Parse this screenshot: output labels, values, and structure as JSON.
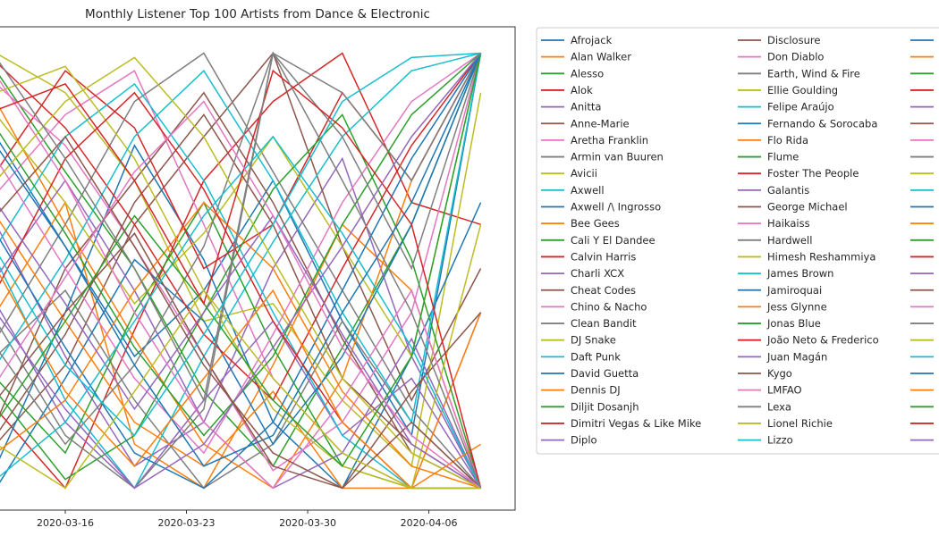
{
  "chart_data": {
    "type": "line",
    "title": "Monthly Listener Top 100 Artists from Dance & Electronic",
    "xlabel": "",
    "ylabel": "",
    "x": [
      "2020-03-12",
      "2020-03-16",
      "2020-03-20",
      "2020-03-24",
      "2020-03-28",
      "2020-04-01",
      "2020-04-05",
      "2020-04-09"
    ],
    "xticks": [
      "2020-03-16",
      "2020-03-23",
      "2020-03-30",
      "2020-04-06"
    ],
    "xlim": [
      "2020-03-12",
      "2020-04-12"
    ],
    "ylim": [
      105,
      -5
    ],
    "grid": false,
    "legend_placement": "outside-right",
    "palette": [
      "#1f77b4",
      "#ff7f0e",
      "#2ca02c",
      "#d62728",
      "#9467bd",
      "#8c564b",
      "#e377c2",
      "#7f7f7f",
      "#bcbd22",
      "#17becf"
    ],
    "series": [
      {
        "name": "Afrojack",
        "values": [
          20,
          45,
          70,
          55,
          30,
          62,
          88,
          1
        ]
      },
      {
        "name": "Alan Walker",
        "values": [
          60,
          35,
          90,
          100,
          72,
          40,
          55,
          100
        ]
      },
      {
        "name": "Alesso",
        "values": [
          5,
          28,
          50,
          78,
          95,
          68,
          40,
          1
        ]
      },
      {
        "name": "Alok",
        "values": [
          82,
          100,
          64,
          30,
          12,
          1,
          35,
          40
        ]
      },
      {
        "name": "Anitta",
        "values": [
          40,
          70,
          95,
          85,
          50,
          25,
          70,
          100
        ]
      },
      {
        "name": "Anne-Marie",
        "values": [
          90,
          72,
          40,
          20,
          1,
          45,
          80,
          50
        ]
      },
      {
        "name": "Aretha Franklin",
        "values": [
          33,
          15,
          5,
          40,
          75,
          92,
          100,
          60
        ]
      },
      {
        "name": "Armin van Buuren",
        "values": [
          70,
          55,
          80,
          100,
          90,
          62,
          85,
          100
        ]
      },
      {
        "name": "Avicii",
        "values": [
          1,
          10,
          30,
          62,
          58,
          80,
          95,
          10
        ]
      },
      {
        "name": "Axwell",
        "values": [
          48,
          80,
          100,
          70,
          44,
          20,
          5,
          1
        ]
      },
      {
        "name": "Axwell /\\ Ingrosso",
        "values": [
          95,
          60,
          22,
          48,
          85,
          100,
          70,
          35
        ]
      },
      {
        "name": "Bee Gees",
        "values": [
          12,
          40,
          66,
          90,
          100,
          75,
          30,
          1
        ]
      },
      {
        "name": "Cali Y El Dandee",
        "values": [
          75,
          92,
          60,
          35,
          68,
          95,
          100,
          100
        ]
      },
      {
        "name": "Calvin Harris",
        "values": [
          28,
          5,
          18,
          50,
          40,
          10,
          30,
          1
        ]
      },
      {
        "name": "Charli XCX",
        "values": [
          58,
          85,
          100,
          80,
          62,
          88,
          75,
          100
        ]
      },
      {
        "name": "Cheat Codes",
        "values": [
          85,
          50,
          30,
          10,
          35,
          66,
          92,
          100
        ]
      },
      {
        "name": "Chino & Nacho",
        "values": [
          8,
          22,
          45,
          70,
          96,
          85,
          60,
          1
        ]
      },
      {
        "name": "Clean Bandit",
        "values": [
          66,
          40,
          12,
          1,
          28,
          55,
          82,
          100
        ]
      },
      {
        "name": "DJ Snake",
        "values": [
          15,
          35,
          58,
          42,
          20,
          45,
          70,
          1
        ]
      },
      {
        "name": "Daft Punk",
        "values": [
          45,
          20,
          8,
          30,
          60,
          88,
          100,
          100
        ]
      },
      {
        "name": "David Guetta",
        "values": [
          100,
          75,
          48,
          62,
          90,
          70,
          40,
          1
        ]
      },
      {
        "name": "Dennis DJ",
        "values": [
          38,
          62,
          85,
          95,
          78,
          100,
          100,
          60
        ]
      },
      {
        "name": "Diljit Dosanjh",
        "values": [
          78,
          98,
          88,
          60,
          32,
          15,
          48,
          100
        ]
      },
      {
        "name": "Dimitri Vegas & Like Mike",
        "values": [
          3,
          18,
          40,
          65,
          80,
          50,
          22,
          1
        ]
      },
      {
        "name": "Diplo",
        "values": [
          52,
          30,
          55,
          85,
          100,
          92,
          66,
          100
        ]
      },
      {
        "name": "Disclosure",
        "values": [
          88,
          65,
          35,
          15,
          40,
          75,
          90,
          100
        ]
      },
      {
        "name": "Don Diablo",
        "values": [
          25,
          50,
          75,
          92,
          65,
          35,
          12,
          1
        ]
      },
      {
        "name": "Earth, Wind & Fire",
        "values": [
          62,
          88,
          100,
          82,
          1,
          10,
          30,
          1
        ]
      },
      {
        "name": "Ellie Goulding",
        "values": [
          10,
          4,
          25,
          55,
          82,
          95,
          100,
          40
        ]
      },
      {
        "name": "Felipe Araújo",
        "values": [
          72,
          48,
          20,
          5,
          30,
          60,
          85,
          1
        ]
      },
      {
        "name": "Fernando & Sorocaba",
        "values": [
          42,
          68,
          92,
          100,
          85,
          55,
          25,
          1
        ]
      },
      {
        "name": "Flo Rida",
        "values": [
          92,
          80,
          55,
          35,
          50,
          78,
          95,
          100
        ]
      },
      {
        "name": "Flume",
        "values": [
          18,
          42,
          68,
          88,
          70,
          40,
          15,
          1
        ]
      },
      {
        "name": "Foster The People",
        "values": [
          55,
          25,
          10,
          32,
          62,
          85,
          100,
          100
        ]
      },
      {
        "name": "Galantis",
        "values": [
          35,
          58,
          82,
          60,
          38,
          65,
          90,
          100
        ]
      },
      {
        "name": "George Michael",
        "values": [
          80,
          60,
          42,
          70,
          95,
          100,
          78,
          60
        ]
      },
      {
        "name": "Haikaiss",
        "values": [
          6,
          30,
          60,
          85,
          100,
          80,
          55,
          100
        ]
      },
      {
        "name": "Hardwell",
        "values": [
          68,
          90,
          72,
          45,
          1,
          20,
          50,
          1
        ]
      },
      {
        "name": "Himesh Reshammiya",
        "values": [
          30,
          12,
          2,
          20,
          48,
          75,
          92,
          100
        ]
      },
      {
        "name": "James Brown",
        "values": [
          98,
          85,
          62,
          38,
          20,
          42,
          68,
          100
        ]
      },
      {
        "name": "Jamiroquai",
        "values": [
          22,
          45,
          72,
          95,
          88,
          60,
          35,
          1
        ]
      },
      {
        "name": "Jess Glynne",
        "values": [
          50,
          78,
          95,
          75,
          55,
          85,
          100,
          90
        ]
      },
      {
        "name": "Jonas Blue",
        "values": [
          85,
          62,
          38,
          58,
          80,
          95,
          70,
          1
        ]
      },
      {
        "name": "João Neto & Frederico",
        "values": [
          14,
          8,
          30,
          58,
          5,
          18,
          40,
          100
        ]
      },
      {
        "name": "Juan Magán",
        "values": [
          60,
          82,
          100,
          90,
          68,
          45,
          20,
          1
        ]
      },
      {
        "name": "Kygo",
        "values": [
          38,
          20,
          45,
          72,
          92,
          100,
          85,
          100
        ]
      },
      {
        "name": "LMFAO",
        "values": [
          76,
          52,
          28,
          12,
          38,
          68,
          88,
          100
        ]
      },
      {
        "name": "Lexa",
        "values": [
          2,
          25,
          50,
          80,
          1,
          30,
          60,
          100
        ]
      },
      {
        "name": "Lionel Richie",
        "values": [
          90,
          100,
          78,
          55,
          75,
          92,
          100,
          100
        ]
      },
      {
        "name": "Lizzo",
        "values": [
          46,
          72,
          88,
          65,
          40,
          12,
          2,
          1
        ]
      }
    ],
    "legend_hidden_column_count": 25
  }
}
